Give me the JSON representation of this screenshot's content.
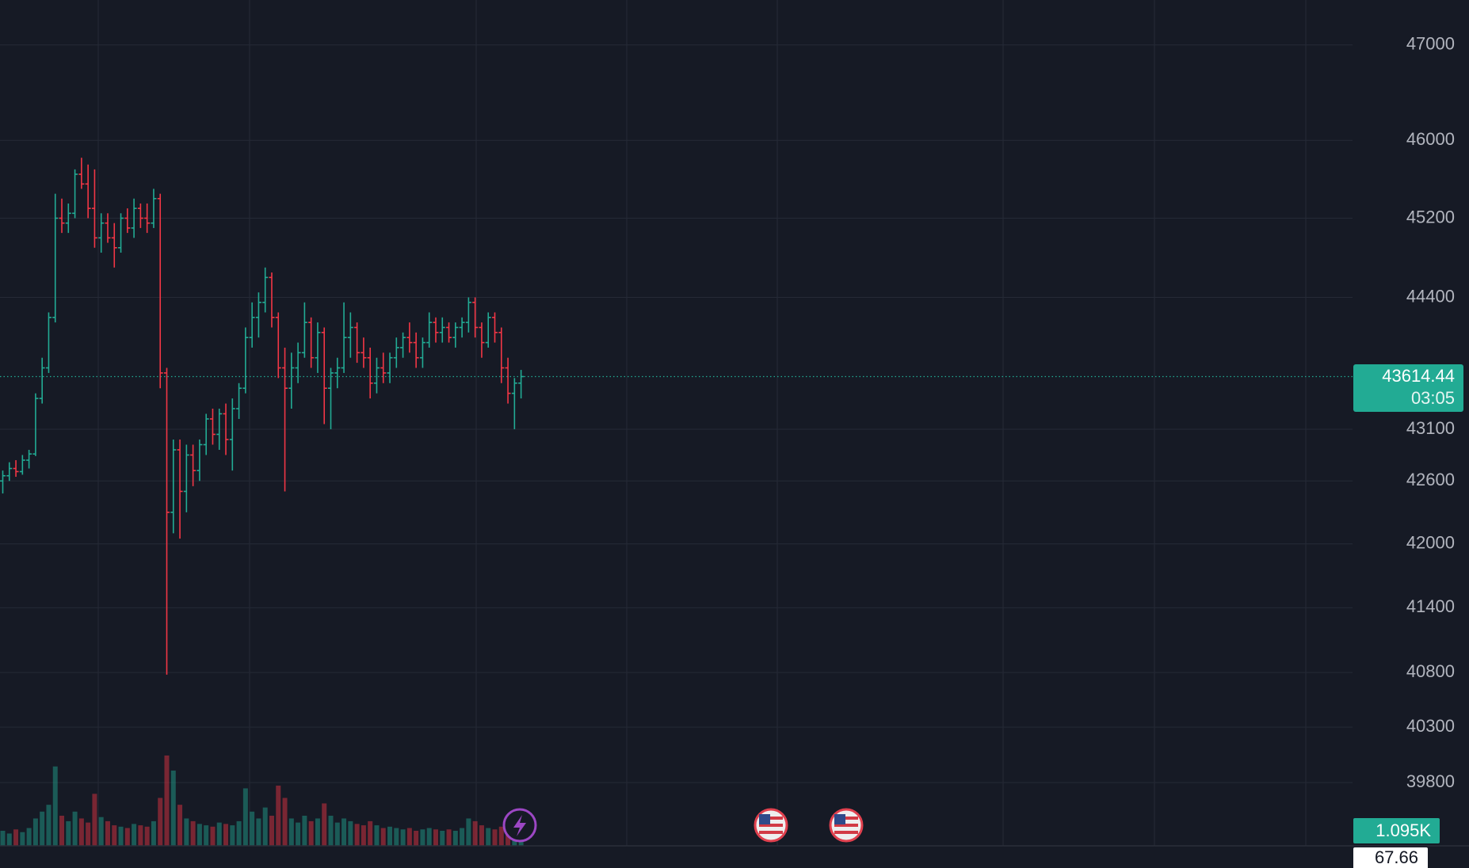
{
  "chart_data": {
    "type": "ohlc",
    "log_scale": true,
    "ylim": [
      39236,
      47479
    ],
    "yticks": [
      47000,
      46000,
      45200,
      44400,
      43100,
      42600,
      42000,
      41400,
      40800,
      40300,
      39800
    ],
    "grid": true,
    "up_color": "#22ab94",
    "down_color": "#f23645",
    "open": [
      42600,
      42650,
      42720,
      42690,
      42800,
      42860,
      43400,
      43700,
      44200,
      45200,
      45150,
      45250,
      45650,
      45550,
      45300,
      45000,
      45150,
      45000,
      44900,
      45200,
      45100,
      45300,
      45200,
      45150,
      45400,
      43650,
      42300,
      42900,
      42500,
      42850,
      42700,
      42950,
      43200,
      43050,
      43250,
      43000,
      43300,
      43500,
      44000,
      44200,
      44350,
      44600,
      44200,
      43700,
      43500,
      43700,
      43850,
      44150,
      43800,
      44050,
      43500,
      43650,
      43700,
      44000,
      44100,
      43850,
      43800,
      43550,
      43700,
      43650,
      43800,
      43900,
      44000,
      43950,
      43800,
      43950,
      44150,
      44050,
      44100,
      44000,
      44100,
      44150,
      44350,
      44100,
      43950,
      44200,
      44050,
      43700,
      43450,
      43550
    ],
    "high": [
      42700,
      42780,
      42800,
      42850,
      42900,
      43450,
      43800,
      44250,
      45450,
      45400,
      45350,
      45700,
      45820,
      45750,
      45700,
      45250,
      45250,
      45150,
      45250,
      45300,
      45400,
      45350,
      45350,
      45500,
      45450,
      43700,
      43000,
      43000,
      42950,
      42950,
      43000,
      43250,
      43300,
      43300,
      43350,
      43400,
      43550,
      44100,
      44350,
      44450,
      44700,
      44650,
      44250,
      43900,
      43850,
      43950,
      44350,
      44200,
      44150,
      44100,
      43700,
      43800,
      44350,
      44250,
      44150,
      44000,
      43900,
      43800,
      43850,
      43850,
      44000,
      44050,
      44150,
      44050,
      44000,
      44250,
      44200,
      44200,
      44150,
      44150,
      44200,
      44400,
      44400,
      44150,
      44250,
      44250,
      44100,
      43800,
      43600,
      43680
    ],
    "low": [
      42480,
      42600,
      42640,
      42660,
      42720,
      42840,
      43350,
      43650,
      44150,
      45050,
      45050,
      45200,
      45500,
      45200,
      44900,
      44850,
      44950,
      44700,
      44850,
      45050,
      45000,
      45100,
      45050,
      45100,
      43500,
      40780,
      42100,
      42050,
      42300,
      42550,
      42600,
      42850,
      42950,
      42900,
      42850,
      42700,
      43200,
      43450,
      43900,
      44000,
      44250,
      44100,
      43600,
      42500,
      43300,
      43550,
      43800,
      43700,
      43650,
      43150,
      43100,
      43500,
      43650,
      43800,
      43750,
      43700,
      43400,
      43450,
      43550,
      43550,
      43700,
      43800,
      43850,
      43700,
      43700,
      43900,
      43950,
      43950,
      43950,
      43900,
      44000,
      44050,
      44000,
      43800,
      43900,
      43950,
      43550,
      43350,
      43100,
      43400
    ],
    "close": [
      42650,
      42720,
      42690,
      42800,
      42860,
      43400,
      43700,
      44200,
      45200,
      45150,
      45250,
      45650,
      45550,
      45300,
      45000,
      45150,
      45000,
      44900,
      45200,
      45100,
      45300,
      45200,
      45150,
      45400,
      43650,
      42300,
      42900,
      42500,
      42850,
      42700,
      42950,
      43200,
      43050,
      43250,
      43000,
      43300,
      43500,
      44000,
      44200,
      44350,
      44600,
      44200,
      43700,
      43500,
      43700,
      43850,
      44150,
      43800,
      44050,
      43500,
      43650,
      43700,
      44000,
      44100,
      43850,
      43800,
      43550,
      43700,
      43650,
      43800,
      43900,
      44000,
      43950,
      43800,
      43950,
      44150,
      44050,
      44100,
      44000,
      44100,
      44150,
      44350,
      44100,
      43950,
      44200,
      44050,
      43700,
      43450,
      43550,
      43614.44
    ],
    "volume": [
      1100,
      900,
      1200,
      1000,
      1300,
      2000,
      2500,
      3000,
      5800,
      2200,
      1800,
      2500,
      2000,
      1700,
      3800,
      2100,
      1800,
      1500,
      1400,
      1300,
      1600,
      1500,
      1400,
      1800,
      3500,
      6600,
      5500,
      3000,
      2000,
      1800,
      1600,
      1500,
      1400,
      1700,
      1600,
      1500,
      1800,
      4200,
      2500,
      2000,
      2800,
      2200,
      4400,
      3500,
      2000,
      1700,
      2200,
      1800,
      2000,
      3100,
      2200,
      1700,
      2000,
      1800,
      1600,
      1500,
      1800,
      1500,
      1300,
      1400,
      1300,
      1200,
      1300,
      1100,
      1200,
      1300,
      1200,
      1100,
      1200,
      1100,
      1300,
      2000,
      1800,
      1500,
      1300,
      1200,
      1400,
      1300,
      1200,
      1095
    ],
    "volume_ylim": [
      0,
      61800
    ],
    "last_volume_label": "1.095K",
    "last_price": 43614.44,
    "countdown": "03:05",
    "indicator_value": 67.66
  }
}
